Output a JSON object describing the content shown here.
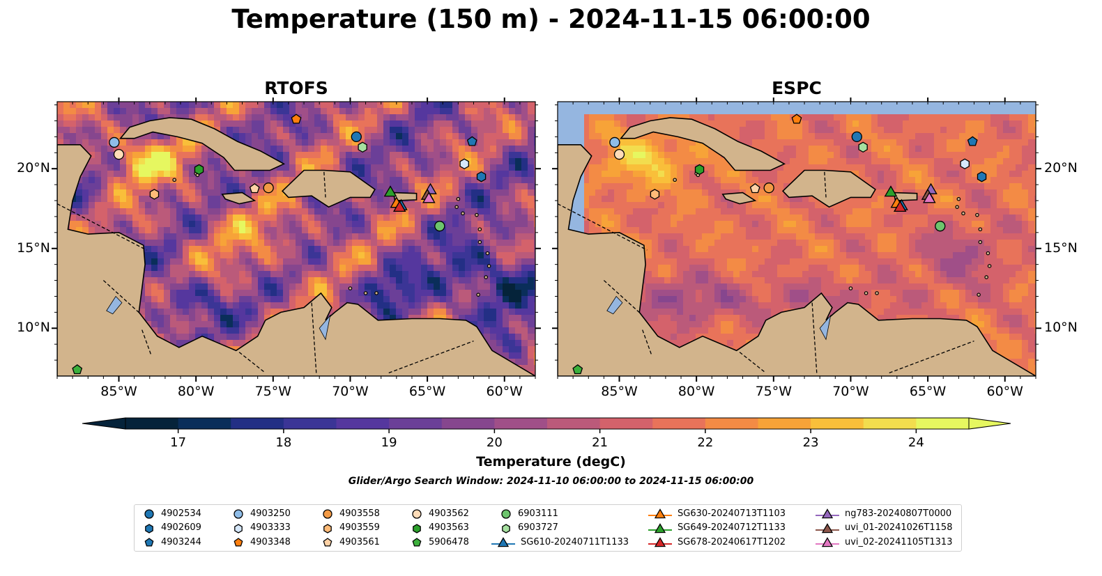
{
  "title": "Temperature (150 m) - 2024-11-15 06:00:00",
  "panels": [
    {
      "title": "RTOFS",
      "model": "rtofs"
    },
    {
      "title": "ESPC",
      "model": "espc"
    }
  ],
  "map": {
    "lon_range": [
      -89,
      -58
    ],
    "lat_range": [
      7,
      24.2
    ],
    "lon_ticks": [
      "85°W",
      "80°W",
      "75°W",
      "70°W",
      "65°W",
      "60°W"
    ],
    "lat_ticks": [
      "20°N",
      "15°N",
      "10°N"
    ],
    "colors": {
      "land": "#d2b48c",
      "ocean_nodata": "#95b6e0",
      "pacific": "#06263a",
      "coast": "#000000"
    }
  },
  "colorbar": {
    "label": "Temperature (degC)",
    "ticks": [
      "17",
      "18",
      "19",
      "20",
      "21",
      "22",
      "23",
      "24"
    ],
    "range": [
      16.5,
      24.5
    ],
    "colormap": "thermal"
  },
  "search_window": "Glider/Argo Search Window: 2024-11-10 06:00:00 to 2024-11-15 06:00:00",
  "legend": {
    "items": [
      {
        "label": "4902534",
        "marker": "circle",
        "color": "#1f77b4"
      },
      {
        "label": "4902609",
        "marker": "hexagon",
        "color": "#1f77b4"
      },
      {
        "label": "4903244",
        "marker": "pentagon",
        "color": "#1f77b4"
      },
      {
        "label": "4903250",
        "marker": "circle",
        "color": "#8fbde8"
      },
      {
        "label": "4903333",
        "marker": "hexagon",
        "color": "#d6e8fb"
      },
      {
        "label": "4903348",
        "marker": "pentagon",
        "color": "#ff7f0e"
      },
      {
        "label": "4903558",
        "marker": "circle",
        "color": "#f39a45"
      },
      {
        "label": "4903559",
        "marker": "hexagon",
        "color": "#ffbb78"
      },
      {
        "label": "4903561",
        "marker": "pentagon",
        "color": "#ffd2a6"
      },
      {
        "label": "4903562",
        "marker": "circle",
        "color": "#ffdcb8"
      },
      {
        "label": "4903563",
        "marker": "hexagon",
        "color": "#2ca02c"
      },
      {
        "label": "5906478",
        "marker": "pentagon",
        "color": "#3cb03c"
      },
      {
        "label": "6903111",
        "marker": "circle",
        "color": "#6dc46d"
      },
      {
        "label": "6903727",
        "marker": "hexagon",
        "color": "#a6e0a0"
      },
      {
        "label": "SG610-20240711T1133",
        "marker": "triangle",
        "color": "#1f77b4"
      },
      {
        "label": "SG630-20240713T1103",
        "marker": "triangle",
        "color": "#ff7f0e"
      },
      {
        "label": "SG649-20240712T1133",
        "marker": "triangle",
        "color": "#2ca02c"
      },
      {
        "label": "SG678-20240617T1202",
        "marker": "triangle",
        "color": "#d62728"
      },
      {
        "label": "ng783-20240807T0000",
        "marker": "triangle",
        "color": "#9467bd"
      },
      {
        "label": "uvi_01-20241026T1158",
        "marker": "triangle",
        "color": "#8c564b"
      },
      {
        "label": "uvi_02-20241105T1313",
        "marker": "triangle",
        "color": "#e377c2"
      }
    ]
  },
  "markers": [
    {
      "id": "4902534",
      "lon": -69.6,
      "lat": 22.0
    },
    {
      "id": "4902609",
      "lon": -61.5,
      "lat": 19.5
    },
    {
      "id": "4903244",
      "lon": -62.1,
      "lat": 21.7
    },
    {
      "id": "4903250",
      "lon": -85.3,
      "lat": 21.65
    },
    {
      "id": "4903333",
      "lon": -62.6,
      "lat": 20.3
    },
    {
      "id": "4903348",
      "lon": -73.5,
      "lat": 23.1
    },
    {
      "id": "4903558",
      "lon": -75.3,
      "lat": 18.8
    },
    {
      "id": "4903559",
      "lon": -82.7,
      "lat": 18.4
    },
    {
      "id": "4903561",
      "lon": -76.2,
      "lat": 18.75
    },
    {
      "id": "4903562",
      "lon": -85.0,
      "lat": 20.9
    },
    {
      "id": "4903563",
      "lon": -79.8,
      "lat": 19.95
    },
    {
      "id": "5906478",
      "lon": -87.7,
      "lat": 7.4
    },
    {
      "id": "6903111",
      "lon": -64.2,
      "lat": 16.4
    },
    {
      "id": "6903727",
      "lon": -69.2,
      "lat": 21.35
    },
    {
      "id": "SG610-20240711T1133",
      "lon": -66.7,
      "lat": 17.7
    },
    {
      "id": "SG649-20240712T1133",
      "lon": -67.4,
      "lat": 18.55
    },
    {
      "id": "SG630-20240713T1103",
      "lon": -67.0,
      "lat": 17.85
    },
    {
      "id": "SG678-20240617T1202",
      "lon": -66.8,
      "lat": 17.6
    },
    {
      "id": "ng783-20240807T0000",
      "lon": -64.8,
      "lat": 18.7
    },
    {
      "id": "uvi_01-20241026T1158",
      "lon": -65.0,
      "lat": 18.35
    },
    {
      "id": "uvi_02-20241105T1313",
      "lon": -64.9,
      "lat": 18.15
    }
  ]
}
